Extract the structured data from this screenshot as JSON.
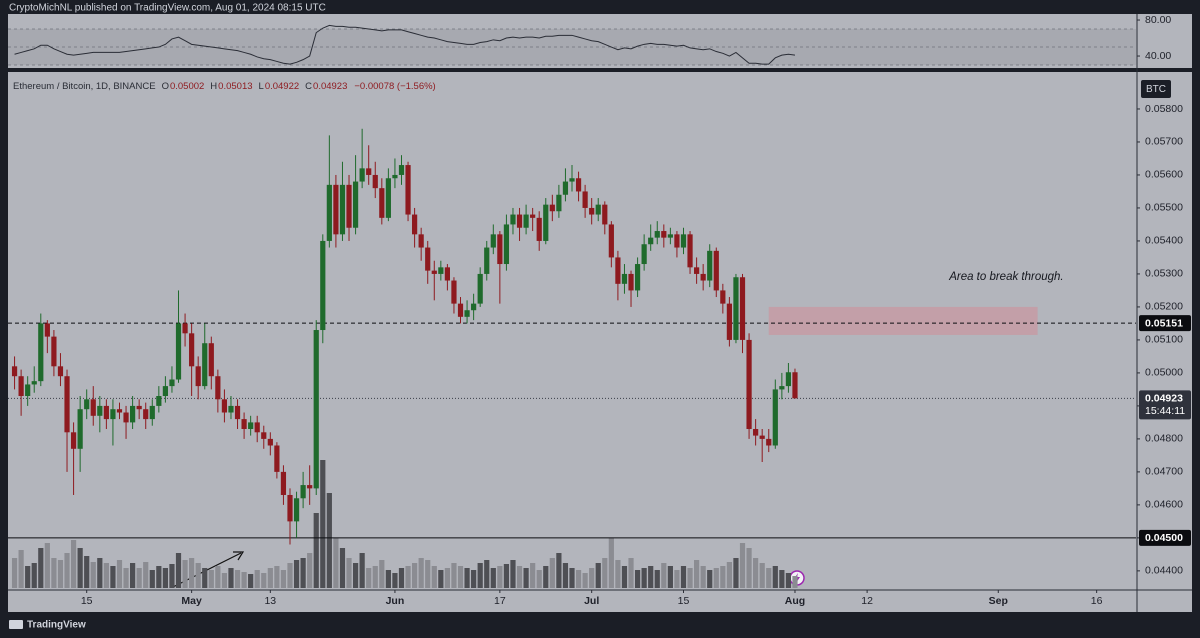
{
  "header": {
    "published": "CryptoMichNL published on TradingView.com, Aug 01, 2024 08:15 UTC",
    "brand": "TradingView"
  },
  "chart_data": {
    "type": "candlestick",
    "symbol": "Ethereum / Bitcoin, 1D, BINANCE",
    "legend": [
      {
        "label": "O",
        "value": "0.05002"
      },
      {
        "label": "H",
        "value": "0.05013"
      },
      {
        "label": "L",
        "value": "0.04922"
      },
      {
        "label": "C",
        "value": "0.04923"
      }
    ],
    "change": "−0.00078 (−1.56%)",
    "currency": "BTC",
    "x": [
      "2024-04-04",
      "2024-04-05",
      "2024-04-06",
      "2024-04-07",
      "2024-04-08",
      "2024-04-09",
      "2024-04-10",
      "2024-04-11",
      "2024-04-12",
      "2024-04-13",
      "2024-04-14",
      "2024-04-15",
      "2024-04-16",
      "2024-04-17",
      "2024-04-18",
      "2024-04-19",
      "2024-04-20",
      "2024-04-21",
      "2024-04-22",
      "2024-04-23",
      "2024-04-24",
      "2024-04-25",
      "2024-04-26",
      "2024-04-27",
      "2024-04-28",
      "2024-04-29",
      "2024-04-30",
      "2024-05-01",
      "2024-05-02",
      "2024-05-03",
      "2024-05-04",
      "2024-05-05",
      "2024-05-06",
      "2024-05-07",
      "2024-05-08",
      "2024-05-09",
      "2024-05-10",
      "2024-05-11",
      "2024-05-12",
      "2024-05-13",
      "2024-05-14",
      "2024-05-15",
      "2024-05-16",
      "2024-05-17",
      "2024-05-18",
      "2024-05-19",
      "2024-05-20",
      "2024-05-21",
      "2024-05-22",
      "2024-05-23",
      "2024-05-24",
      "2024-05-25",
      "2024-05-26",
      "2024-05-27",
      "2024-05-28",
      "2024-05-29",
      "2024-05-30",
      "2024-05-31",
      "2024-06-01",
      "2024-06-02",
      "2024-06-03",
      "2024-06-04",
      "2024-06-05",
      "2024-06-06",
      "2024-06-07",
      "2024-06-08",
      "2024-06-09",
      "2024-06-10",
      "2024-06-11",
      "2024-06-12",
      "2024-06-13",
      "2024-06-14",
      "2024-06-15",
      "2024-06-16",
      "2024-06-17",
      "2024-06-18",
      "2024-06-19",
      "2024-06-20",
      "2024-06-21",
      "2024-06-22",
      "2024-06-23",
      "2024-06-24",
      "2024-06-25",
      "2024-06-26",
      "2024-06-27",
      "2024-06-28",
      "2024-06-29",
      "2024-06-30",
      "2024-07-01",
      "2024-07-02",
      "2024-07-03",
      "2024-07-04",
      "2024-07-05",
      "2024-07-06",
      "2024-07-07",
      "2024-07-08",
      "2024-07-09",
      "2024-07-10",
      "2024-07-11",
      "2024-07-12",
      "2024-07-13",
      "2024-07-14",
      "2024-07-15",
      "2024-07-16",
      "2024-07-17",
      "2024-07-18",
      "2024-07-19",
      "2024-07-20",
      "2024-07-21",
      "2024-07-22",
      "2024-07-23",
      "2024-07-24",
      "2024-07-25",
      "2024-07-26",
      "2024-07-27",
      "2024-07-28",
      "2024-07-29",
      "2024-07-30",
      "2024-07-31",
      "2024-08-01"
    ],
    "open": [
      0.0502,
      0.0499,
      0.0493,
      0.04965,
      0.04975,
      0.0515,
      0.0511,
      0.0502,
      0.0499,
      0.0482,
      0.0477,
      0.0489,
      0.0492,
      0.0487,
      0.049,
      0.0486,
      0.0489,
      0.0488,
      0.0485,
      0.049,
      0.0489,
      0.0486,
      0.049,
      0.0493,
      0.0496,
      0.0498,
      0.0515,
      0.0512,
      0.0502,
      0.0496,
      0.0509,
      0.0499,
      0.0492,
      0.0488,
      0.049,
      0.0486,
      0.0483,
      0.0485,
      0.0482,
      0.048,
      0.0478,
      0.047,
      0.0463,
      0.0455,
      0.0462,
      0.0466,
      0.0465,
      0.0513,
      0.054,
      0.0557,
      0.0542,
      0.0557,
      0.0544,
      0.0558,
      0.0562,
      0.056,
      0.0556,
      0.0547,
      0.0559,
      0.056,
      0.0563,
      0.0548,
      0.0542,
      0.0538,
      0.0531,
      0.053,
      0.0532,
      0.0528,
      0.0521,
      0.0517,
      0.0519,
      0.0521,
      0.053,
      0.0538,
      0.0542,
      0.0533,
      0.0545,
      0.0548,
      0.0544,
      0.0548,
      0.0547,
      0.054,
      0.0551,
      0.0549,
      0.0554,
      0.0558,
      0.0559,
      0.0555,
      0.055,
      0.0548,
      0.0551,
      0.0545,
      0.0535,
      0.0527,
      0.053,
      0.0525,
      0.0533,
      0.0539,
      0.0541,
      0.0543,
      0.0541,
      0.0542,
      0.0538,
      0.0542,
      0.0532,
      0.053,
      0.0528,
      0.0537,
      0.0525,
      0.0521,
      0.051,
      0.0529,
      0.051,
      0.0483,
      0.0481,
      0.048,
      0.0478,
      0.0495,
      0.0496,
      0.05002
    ],
    "high": [
      0.0505,
      0.0501,
      0.0499,
      0.0502,
      0.0518,
      0.0516,
      0.0513,
      0.0506,
      0.0501,
      0.0485,
      0.0493,
      0.0495,
      0.0496,
      0.0493,
      0.0492,
      0.0492,
      0.0491,
      0.049,
      0.0493,
      0.0492,
      0.0491,
      0.0492,
      0.0496,
      0.0499,
      0.0502,
      0.0525,
      0.0518,
      0.0515,
      0.0505,
      0.0515,
      0.0511,
      0.0501,
      0.0495,
      0.0493,
      0.0492,
      0.0488,
      0.0487,
      0.0487,
      0.0484,
      0.0482,
      0.0479,
      0.0472,
      0.0465,
      0.0464,
      0.047,
      0.0472,
      0.0516,
      0.0542,
      0.0572,
      0.056,
      0.0564,
      0.056,
      0.0566,
      0.0574,
      0.0569,
      0.0564,
      0.0559,
      0.0562,
      0.0565,
      0.0566,
      0.0564,
      0.055,
      0.0544,
      0.054,
      0.0534,
      0.0534,
      0.0533,
      0.0529,
      0.0523,
      0.0522,
      0.0524,
      0.0532,
      0.054,
      0.0545,
      0.0543,
      0.0548,
      0.055,
      0.055,
      0.0551,
      0.055,
      0.0549,
      0.0553,
      0.0554,
      0.0557,
      0.0562,
      0.0563,
      0.0561,
      0.0557,
      0.0553,
      0.0553,
      0.0552,
      0.0546,
      0.0537,
      0.0533,
      0.0531,
      0.0535,
      0.0542,
      0.0545,
      0.0546,
      0.0545,
      0.0544,
      0.0543,
      0.0544,
      0.0543,
      0.0535,
      0.0533,
      0.0539,
      0.0538,
      0.0527,
      0.0523,
      0.053,
      0.053,
      0.0512,
      0.0486,
      0.0483,
      0.0483,
      0.0498,
      0.05,
      0.0503,
      0.05013
    ],
    "low": [
      0.0495,
      0.0487,
      0.049,
      0.0494,
      0.0496,
      0.0506,
      0.0499,
      0.0496,
      0.047,
      0.0463,
      0.047,
      0.0486,
      0.0484,
      0.0482,
      0.0483,
      0.0478,
      0.0486,
      0.048,
      0.0483,
      0.0486,
      0.0483,
      0.0484,
      0.0488,
      0.0491,
      0.0494,
      0.0497,
      0.0508,
      0.0493,
      0.0492,
      0.0495,
      0.0495,
      0.0488,
      0.0485,
      0.0486,
      0.0483,
      0.048,
      0.0481,
      0.0479,
      0.0477,
      0.0475,
      0.0468,
      0.046,
      0.0448,
      0.045,
      0.0459,
      0.046,
      0.0463,
      0.0509,
      0.0538,
      0.0538,
      0.054,
      0.054,
      0.0542,
      0.0556,
      0.0557,
      0.0553,
      0.0545,
      0.0546,
      0.0556,
      0.0557,
      0.0546,
      0.0538,
      0.0534,
      0.0527,
      0.0522,
      0.0528,
      0.0525,
      0.0518,
      0.0515,
      0.0515,
      0.0516,
      0.052,
      0.0528,
      0.0536,
      0.0521,
      0.0531,
      0.0542,
      0.054,
      0.0542,
      0.0543,
      0.0537,
      0.0539,
      0.0546,
      0.0547,
      0.0552,
      0.0555,
      0.0552,
      0.0547,
      0.0545,
      0.0546,
      0.0542,
      0.0532,
      0.0522,
      0.0524,
      0.052,
      0.0523,
      0.0531,
      0.0537,
      0.0539,
      0.0538,
      0.0539,
      0.0535,
      0.0536,
      0.053,
      0.0527,
      0.0525,
      0.0526,
      0.0523,
      0.0518,
      0.0508,
      0.0509,
      0.0506,
      0.048,
      0.0478,
      0.0473,
      0.0476,
      0.0477,
      0.0492,
      0.0494,
      0.04922
    ],
    "close": [
      0.0499,
      0.0493,
      0.04965,
      0.04975,
      0.0515,
      0.0511,
      0.0502,
      0.0499,
      0.0482,
      0.0477,
      0.0489,
      0.0492,
      0.0487,
      0.049,
      0.0486,
      0.0489,
      0.0488,
      0.0485,
      0.049,
      0.0489,
      0.0486,
      0.049,
      0.0493,
      0.0496,
      0.0498,
      0.0515,
      0.0512,
      0.0502,
      0.0496,
      0.0509,
      0.0499,
      0.0492,
      0.0488,
      0.049,
      0.0486,
      0.0483,
      0.0485,
      0.0482,
      0.048,
      0.0478,
      0.047,
      0.0463,
      0.0455,
      0.0462,
      0.0466,
      0.0465,
      0.0513,
      0.054,
      0.0557,
      0.0542,
      0.0557,
      0.0544,
      0.0558,
      0.0562,
      0.056,
      0.0556,
      0.0547,
      0.0559,
      0.056,
      0.0563,
      0.0548,
      0.0542,
      0.0538,
      0.0531,
      0.053,
      0.0532,
      0.0528,
      0.0521,
      0.0517,
      0.0519,
      0.0521,
      0.053,
      0.0538,
      0.0542,
      0.0533,
      0.0545,
      0.0548,
      0.0544,
      0.0548,
      0.0547,
      0.054,
      0.0551,
      0.0549,
      0.0554,
      0.0558,
      0.0559,
      0.0555,
      0.055,
      0.0548,
      0.0551,
      0.0545,
      0.0535,
      0.0527,
      0.053,
      0.0525,
      0.0533,
      0.0539,
      0.0541,
      0.0543,
      0.0541,
      0.0542,
      0.0538,
      0.0542,
      0.0532,
      0.053,
      0.0528,
      0.0537,
      0.0525,
      0.0521,
      0.051,
      0.0529,
      0.051,
      0.0483,
      0.0481,
      0.048,
      0.0478,
      0.0495,
      0.0496,
      0.05002,
      0.04923
    ],
    "volume": [
      30,
      38,
      22,
      25,
      40,
      45,
      30,
      28,
      35,
      48,
      40,
      32,
      26,
      30,
      25,
      22,
      28,
      20,
      25,
      20,
      26,
      18,
      22,
      20,
      24,
      35,
      28,
      30,
      25,
      20,
      18,
      22,
      15,
      20,
      18,
      16,
      14,
      18,
      15,
      20,
      22,
      18,
      25,
      28,
      30,
      35,
      75,
      128,
      95,
      50,
      40,
      30,
      25,
      35,
      20,
      22,
      28,
      18,
      15,
      20,
      22,
      25,
      30,
      28,
      22,
      18,
      20,
      25,
      22,
      20,
      18,
      25,
      28,
      20,
      22,
      24,
      28,
      22,
      20,
      25,
      18,
      22,
      30,
      35,
      25,
      20,
      18,
      15,
      20,
      25,
      30,
      50,
      28,
      22,
      30,
      18,
      20,
      22,
      18,
      25,
      22,
      18,
      22,
      20,
      28,
      22,
      18,
      20,
      22,
      26,
      30,
      45,
      40,
      30,
      25,
      20,
      22,
      18,
      15,
      12
    ],
    "up_color": "#1f6a2c",
    "down_color": "#8e1a1f",
    "volume_up_color": "#4e4f54",
    "volume_down_color": "#8b8c92",
    "xlim": [
      "2024-04-03",
      "2024-09-22"
    ],
    "xticks": [
      {
        "value": "2024-04-15",
        "label": "15"
      },
      {
        "value": "2024-05-01",
        "label": "May"
      },
      {
        "value": "2024-05-13",
        "label": "13"
      },
      {
        "value": "2024-06-01",
        "label": "Jun"
      },
      {
        "value": "2024-06-17",
        "label": "17"
      },
      {
        "value": "2024-07-01",
        "label": "Jul"
      },
      {
        "value": "2024-07-15",
        "label": "15"
      },
      {
        "value": "2024-08-01",
        "label": "Aug"
      },
      {
        "value": "2024-08-12",
        "label": "12"
      },
      {
        "value": "2024-09-01",
        "label": "Sep"
      },
      {
        "value": "2024-09-16",
        "label": "16"
      }
    ],
    "ylim": [
      0.04342,
      0.05906
    ],
    "yticks": [
      {
        "value": 0.044,
        "label": "0.04400"
      },
      {
        "value": 0.045,
        "label": "0.04500"
      },
      {
        "value": 0.046,
        "label": "0.04600"
      },
      {
        "value": 0.047,
        "label": "0.04700"
      },
      {
        "value": 0.048,
        "label": "0.04800"
      },
      {
        "value": 0.049,
        "label": "0.04900"
      },
      {
        "value": 0.05,
        "label": "0.05000"
      },
      {
        "value": 0.051,
        "label": "0.05100"
      },
      {
        "value": 0.052,
        "label": "0.05200"
      },
      {
        "value": 0.053,
        "label": "0.05300"
      },
      {
        "value": 0.054,
        "label": "0.05400"
      },
      {
        "value": 0.055,
        "label": "0.05500"
      },
      {
        "value": 0.056,
        "label": "0.05600"
      },
      {
        "value": 0.057,
        "label": "0.05700"
      },
      {
        "value": 0.058,
        "label": "0.05800"
      }
    ],
    "lines": [
      {
        "value": 0.05151,
        "style": "dashed"
      },
      {
        "value": 0.045,
        "label": "0.04500",
        "style": "solid"
      }
    ],
    "last_price": {
      "value": 0.04923,
      "countdown": "15:44:11"
    },
    "zone": {
      "x": [
        "2024-07-28",
        "2024-09-07"
      ],
      "y": [
        0.05115,
        0.052
      ],
      "color": "#c79aa3",
      "text": "Area to break through."
    },
    "rsi": {
      "values": [
        42,
        44,
        46,
        48,
        52,
        52,
        48,
        45,
        42,
        41,
        42,
        43,
        44,
        44,
        44,
        44,
        44,
        45,
        46,
        47,
        48,
        49,
        50,
        53,
        59,
        61,
        57,
        53,
        52,
        51,
        50,
        49,
        48,
        47,
        46,
        44,
        42,
        39,
        37,
        36,
        34,
        32,
        31,
        33,
        36,
        40,
        66,
        71,
        74,
        73,
        73,
        72,
        72,
        71,
        70,
        69,
        68,
        69,
        69,
        69,
        67,
        65,
        63,
        61,
        60,
        58,
        56,
        55,
        54,
        53,
        53,
        55,
        56,
        58,
        57,
        60,
        61,
        60,
        61,
        61,
        60,
        62,
        62,
        63,
        63,
        63,
        61,
        59,
        57,
        56,
        53,
        50,
        47,
        49,
        48,
        51,
        53,
        54,
        53,
        53,
        52,
        51,
        52,
        49,
        48,
        47,
        48,
        45,
        43,
        40,
        44,
        38,
        32,
        32,
        31,
        31,
        38,
        41,
        42,
        41
      ],
      "color": "#2a2d36",
      "ylim": [
        26.7,
        86.7
      ],
      "yticks": [
        {
          "value": 40,
          "label": "40.00"
        },
        {
          "value": 80,
          "label": "80.00"
        }
      ],
      "levels": [
        70,
        50,
        30
      ]
    }
  }
}
